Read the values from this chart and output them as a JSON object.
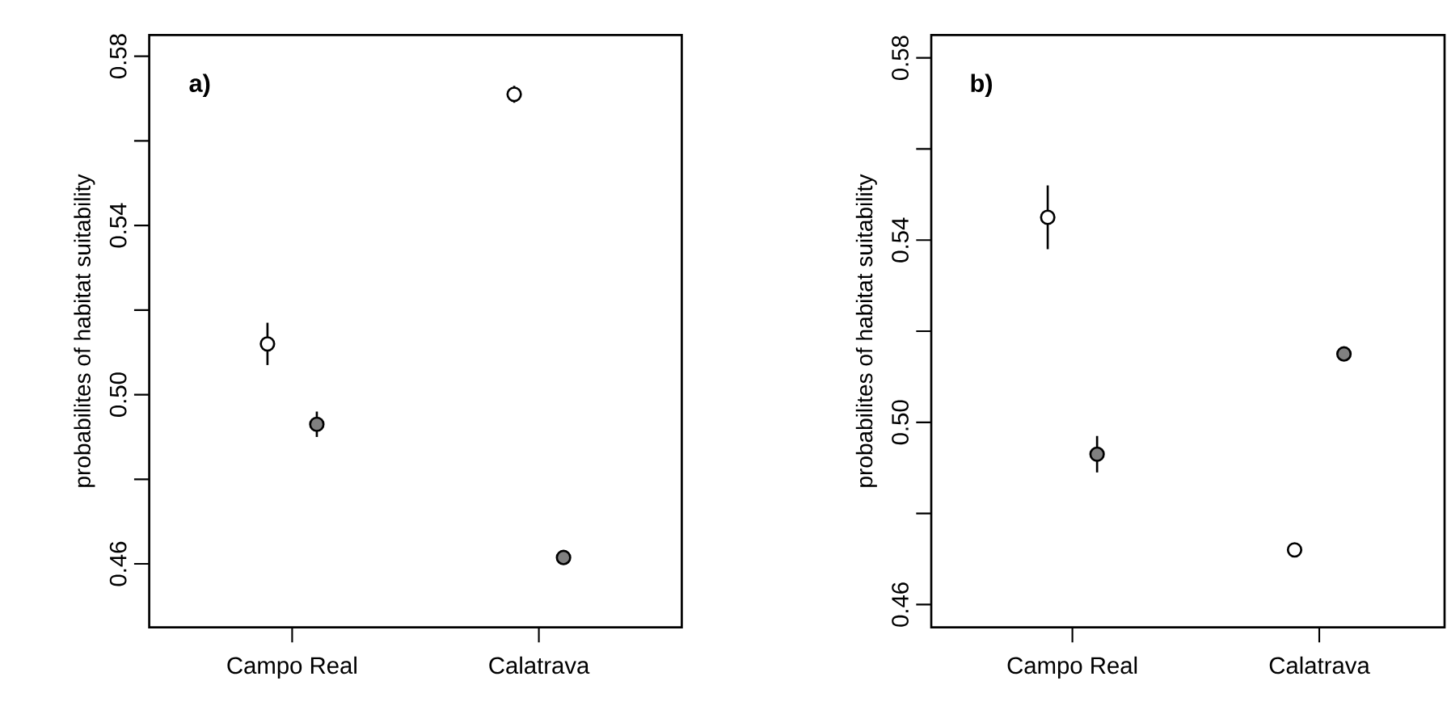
{
  "chart_data": [
    {
      "type": "scatter",
      "categories": [
        "Campo Real",
        "Calatrava"
      ],
      "ylabel": "probabilites of habitat suitability",
      "annotations": [
        "a)"
      ],
      "ylim": [
        0.445,
        0.585
      ],
      "yticks": [
        0.46,
        {
          "value": 0.48,
          "label": null
        },
        {
          "value": 0.5,
          "label": "0.50"
        },
        {
          "value": 0.52,
          "label": null
        },
        0.54,
        {
          "value": 0.56,
          "label": null
        },
        0.58
      ],
      "marker": "circle",
      "series": [
        {
          "color": "#ffffff",
          "values": [
            0.512,
            0.571
          ],
          "errors": [
            0.005,
            0.002
          ]
        },
        {
          "color": "#808080",
          "values": [
            0.493,
            0.4615
          ],
          "errors": [
            0.003,
            null
          ]
        }
      ]
    },
    {
      "type": "scatter",
      "categories": [
        "Campo Real",
        "Calatrava"
      ],
      "ylabel": "probabilites of habitat suitability",
      "annotations": [
        "b)"
      ],
      "ylim": [
        0.455,
        0.585
      ],
      "yticks": [
        0.46,
        {
          "value": 0.48,
          "label": null
        },
        {
          "value": 0.5,
          "label": "0.50"
        },
        {
          "value": 0.52,
          "label": null
        },
        0.54,
        {
          "value": 0.56,
          "label": null
        },
        0.58
      ],
      "marker": "circle",
      "series": [
        {
          "color": "#ffffff",
          "values": [
            0.545,
            0.472
          ],
          "errors": [
            0.007,
            null
          ]
        },
        {
          "color": "#808080",
          "values": [
            0.493,
            0.515
          ],
          "errors": [
            0.004,
            null
          ]
        }
      ]
    }
  ]
}
